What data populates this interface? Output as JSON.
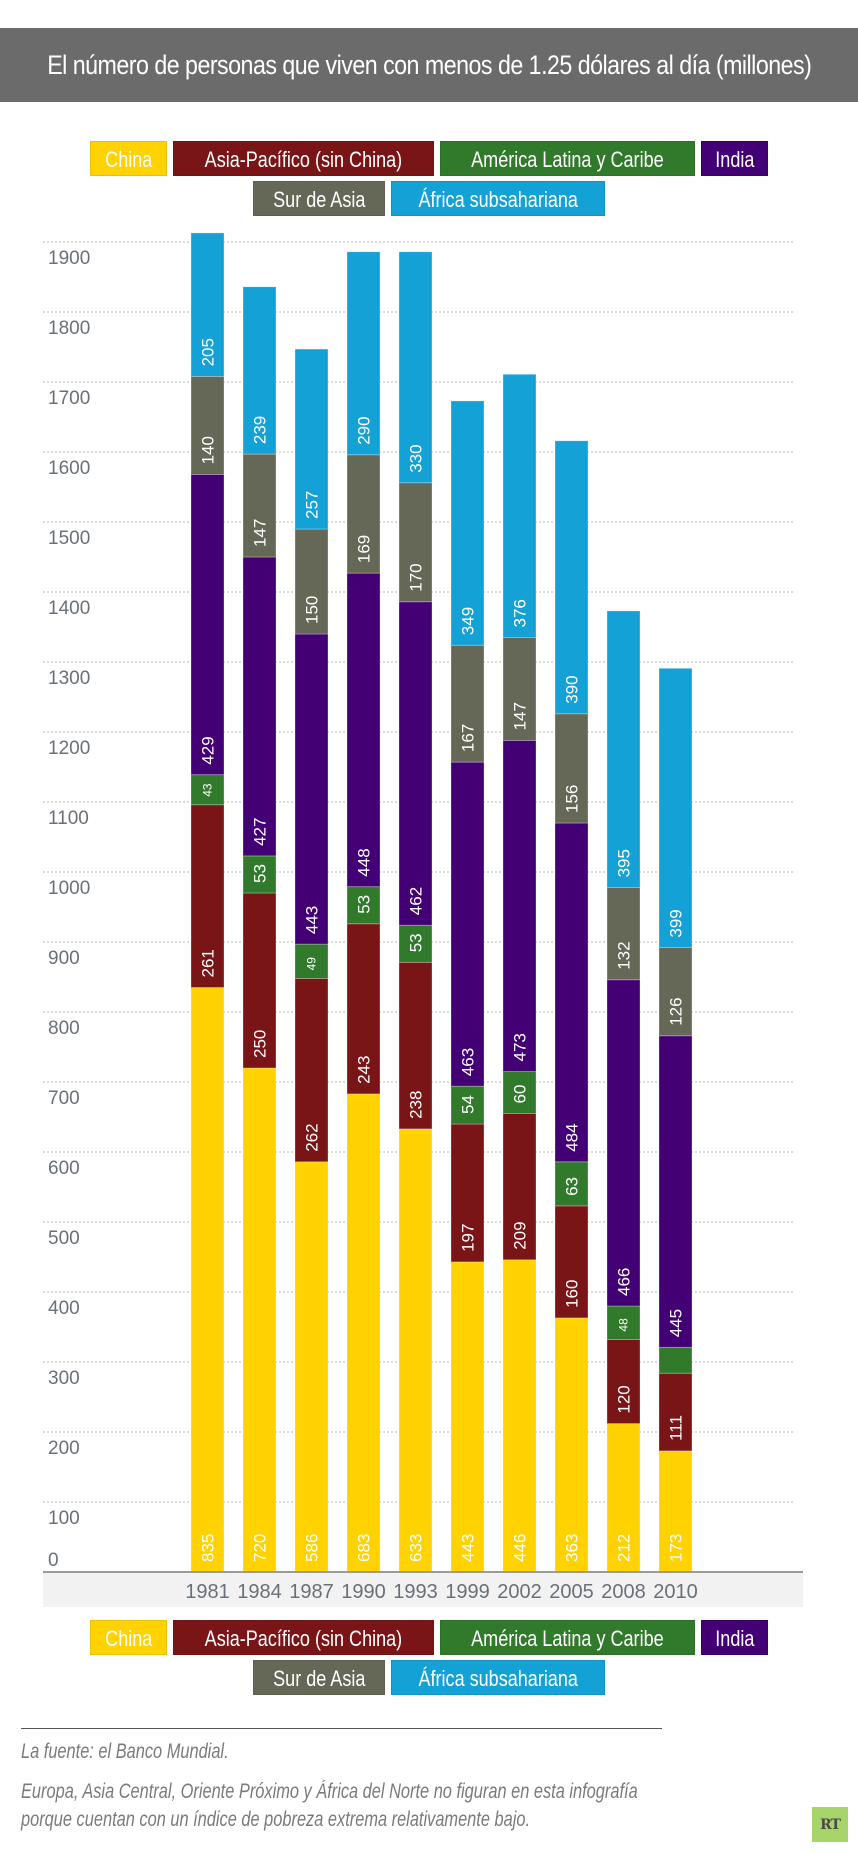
{
  "title": "El número de personas que viven con menos de 1.25 dólares al día (millones)",
  "legend": [
    {
      "label": "China",
      "color": "#FFD200"
    },
    {
      "label": "Asia-Pacífico (sin China)",
      "color": "#7A1517"
    },
    {
      "label": "América Latina y Caribe",
      "color": "#317A2C"
    },
    {
      "label": "India",
      "color": "#430075"
    },
    {
      "label": "Sur de Asia",
      "color": "#666857"
    },
    {
      "label": "África subsahariana",
      "color": "#13A1D6"
    }
  ],
  "chart_data": {
    "type": "bar",
    "stacked": true,
    "title": "El número de personas que viven con menos de 1.25 dólares al día (millones)",
    "xlabel": "",
    "ylabel": "",
    "categories": [
      "1981",
      "1984",
      "1987",
      "1990",
      "1993",
      "1999",
      "2002",
      "2005",
      "2008",
      "2010"
    ],
    "ylim": [
      0,
      1900
    ],
    "yticks": [
      0,
      100,
      200,
      300,
      400,
      500,
      600,
      700,
      800,
      900,
      1000,
      1100,
      1200,
      1300,
      1400,
      1500,
      1600,
      1700,
      1800,
      1900
    ],
    "grid": true,
    "legend_position": "top and bottom, centered",
    "series": [
      {
        "name": "China",
        "color": "#FFD200",
        "values": [
          835,
          720,
          586,
          683,
          633,
          443,
          446,
          363,
          212,
          173
        ],
        "labels": [
          "835",
          "720",
          "586",
          "683",
          "633",
          "443",
          "446",
          "363",
          "212",
          "173"
        ]
      },
      {
        "name": "Asia-Pacífico (sin China)",
        "color": "#7A1517",
        "values": [
          261,
          250,
          262,
          243,
          238,
          197,
          209,
          160,
          120,
          111
        ],
        "labels": [
          "261",
          "250",
          "262",
          "243",
          "238",
          "197",
          "209",
          "160",
          "120",
          "111"
        ]
      },
      {
        "name": "América Latina y Caribe",
        "color": "#317A2C",
        "values": [
          43,
          53,
          49,
          53,
          53,
          54,
          60,
          63,
          48,
          37
        ],
        "labels": [
          "43",
          "53",
          "49",
          "53",
          "53",
          "54",
          "60",
          "63",
          "48",
          ""
        ]
      },
      {
        "name": "India",
        "color": "#430075",
        "values": [
          429,
          427,
          443,
          448,
          462,
          463,
          473,
          484,
          466,
          445
        ],
        "labels": [
          "429",
          "427",
          "443",
          "448",
          "462",
          "463",
          "473",
          "484",
          "466",
          "445"
        ]
      },
      {
        "name": "Sur de Asia",
        "color": "#666857",
        "values": [
          140,
          147,
          150,
          169,
          170,
          167,
          147,
          156,
          132,
          126
        ],
        "labels": [
          "140",
          "147",
          "150",
          "169",
          "170",
          "167",
          "147",
          "156",
          "132",
          "126"
        ]
      },
      {
        "name": "África subsahariana",
        "color": "#13A1D6",
        "values": [
          205,
          239,
          257,
          290,
          330,
          349,
          376,
          390,
          395,
          399
        ],
        "labels": [
          "205",
          "239",
          "257",
          "290",
          "330",
          "349",
          "376",
          "390",
          "395",
          "399"
        ]
      }
    ]
  },
  "footer": {
    "source": "La fuente: el Banco Mundial.",
    "note_line1": "Europa, Asia Central, Oriente Próximo y África del Norte no figuran en esta infografía",
    "note_line2": "porque cuentan con un índice de pobreza extrema relativamente bajo.",
    "logo": "RT"
  }
}
